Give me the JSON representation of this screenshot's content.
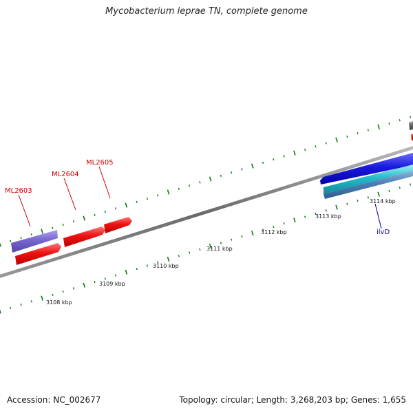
{
  "title": "Mycobacterium leprae TN, complete genome",
  "footer": {
    "accession": "Accession: NC_002677",
    "summary": "Topology: circular; Length: 3,268,203 bp; Genes: 1,655"
  },
  "colors": {
    "backbone": "#777777",
    "tick": "#0a7a0a",
    "red_gene": "#ee1111",
    "purple_gene": "#7766cc",
    "blue_gene": "#1a1add",
    "cyan_gene": "#22bbcc",
    "steel_gene": "#4a7fb5",
    "grey_gene": "#666666",
    "label_red": "#cc0000",
    "label_blue": "#0000aa"
  },
  "scale_labels": [
    "3108 kbp",
    "3109 kbp",
    "3110 kbp",
    "3111 kbp",
    "3112 kbp",
    "3113 kbp",
    "3114 kbp"
  ],
  "genes": [
    {
      "name": "ML2603",
      "color": "purple_gene"
    },
    {
      "name": "",
      "color": "red_gene"
    },
    {
      "name": "ML2604",
      "color": "red_gene"
    },
    {
      "name": "ML2605",
      "color": "red_gene"
    },
    {
      "name": "",
      "color": "blue_gene"
    },
    {
      "name": "",
      "color": "cyan_gene"
    },
    {
      "name": "ilvD",
      "color": "steel_gene"
    },
    {
      "name": "",
      "color": "grey_gene"
    },
    {
      "name": "",
      "color": "red_gene"
    }
  ]
}
